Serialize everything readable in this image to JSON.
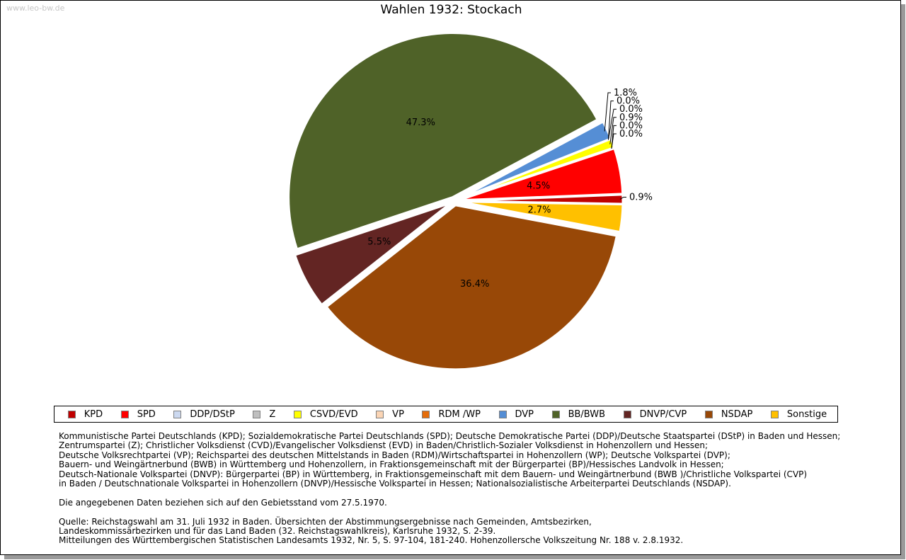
{
  "watermark": "www.leo-bw.de",
  "chart_data": {
    "type": "pie",
    "title": "Wahlen 1932: Stockach",
    "slices": [
      {
        "party": "KPD",
        "value": 0.9,
        "label": "0.9%",
        "color": "#c00000"
      },
      {
        "party": "SPD",
        "value": 4.5,
        "label": "4.5%",
        "color": "#ff0000"
      },
      {
        "party": "DDP/DStP",
        "value": 0.0,
        "label": "0.0%",
        "color": "#ccd9f0"
      },
      {
        "party": "Z",
        "value": 0.0,
        "label": "0.0%",
        "color": "#bfbfbf"
      },
      {
        "party": "CSVD/EVD",
        "value": 0.9,
        "label": "0.9%",
        "color": "#ffff00"
      },
      {
        "party": "VP",
        "value": 0.0,
        "label": "0.0%",
        "color": "#fbd5b5"
      },
      {
        "party": "RDM /WP",
        "value": 0.0,
        "label": "0.0%",
        "color": "#e46c0a"
      },
      {
        "party": "DVP",
        "value": 1.8,
        "label": "1.8%",
        "color": "#558ed5"
      },
      {
        "party": "BB/BWB",
        "value": 47.3,
        "label": "47.3%",
        "color": "#4f6228"
      },
      {
        "party": "DNVP/CVP",
        "value": 5.5,
        "label": "5.5%",
        "color": "#632523"
      },
      {
        "party": "NSDAP",
        "value": 36.4,
        "label": "36.4%",
        "color": "#984807"
      },
      {
        "party": "Sonstige",
        "value": 2.7,
        "label": "2.7%",
        "color": "#ffc000"
      }
    ]
  },
  "legend": [
    {
      "label": "KPD",
      "color": "#c00000"
    },
    {
      "label": "SPD",
      "color": "#ff0000"
    },
    {
      "label": "DDP/DStP",
      "color": "#ccd9f0"
    },
    {
      "label": "Z",
      "color": "#bfbfbf"
    },
    {
      "label": "CSVD/EVD",
      "color": "#ffff00"
    },
    {
      "label": "VP",
      "color": "#fbd5b5"
    },
    {
      "label": "RDM /WP",
      "color": "#e46c0a"
    },
    {
      "label": "DVP",
      "color": "#558ed5"
    },
    {
      "label": "BB/BWB",
      "color": "#4f6228"
    },
    {
      "label": "DNVP/CVP",
      "color": "#632523"
    },
    {
      "label": "NSDAP",
      "color": "#984807"
    },
    {
      "label": "Sonstige",
      "color": "#ffc000"
    }
  ],
  "notes": {
    "parties": [
      "Kommunistische Partei Deutschlands (KPD); Sozialdemokratische Partei Deutschlands (SPD); Deutsche Demokratische Partei (DDP)/Deutsche Staatspartei (DStP) in Baden und Hessen;",
      "Zentrumspartei (Z); Christlicher Volksdienst (CVD)/Evangelischer Volksdienst (EVD) in Baden/Christlich-Sozialer Volksdienst in Hohenzollern und Hessen;",
      "Deutsche Volksrechtpartei (VP); Reichspartei des deutschen Mittelstands in Baden (RDM)/Wirtschaftspartei in Hohenzollern (WP); Deutsche Volkspartei (DVP);",
      "Bauern- und Weingärtnerbund (BWB) in Württemberg und Hohenzollern, in Fraktionsgemeinschaft mit der Bürgerpartei (BP)/Hessisches Landvolk in Hessen;",
      "Deutsch-Nationale Volkspartei (DNVP): Bürgerpartei (BP) in Württemberg, in Fraktionsgemeinschaft mit dem Bauern- und Weingärtnerbund (BWB )/Christliche Volkspartei (CVP)",
      "in Baden / Deutschnationale Volkspartei in Hohenzollern (DNVP)/Hessische Volkspartei in Hessen; Nationalsozialistische Arbeiterpartei Deutschlands (NSDAP)."
    ],
    "territory": "Die angegebenen Daten beziehen sich auf den Gebietsstand vom 27.5.1970.",
    "source": [
      "Quelle: Reichstagswahl am 31. Juli 1932 in Baden. Übersichten der Abstimmungsergebnisse nach Gemeinden, Amtsbezirken,",
      "Landeskommissärbezirken und für das Land Baden (32. Reichstagswahlkreis), Karlsruhe 1932, S. 2-39.",
      "Mitteilungen des Württembergischen Statistischen Landesamts 1932, Nr. 5, S. 97-104, 181-240. Hohenzollersche Volkszeitung Nr. 188 v. 2.8.1932."
    ]
  }
}
